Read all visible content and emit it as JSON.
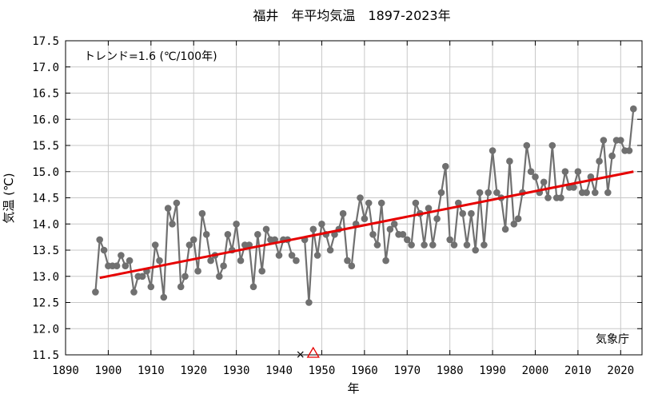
{
  "chart_data": {
    "type": "line",
    "title": "福井　年平均気温　1897-2023年",
    "xlabel": "年",
    "ylabel": "気温 (℃)",
    "xlim": [
      1890,
      2025
    ],
    "ylim": [
      11.5,
      17.5
    ],
    "x_ticks": [
      1890,
      1900,
      1910,
      1920,
      1930,
      1940,
      1950,
      1960,
      1970,
      1980,
      1990,
      2000,
      2010,
      2020
    ],
    "y_ticks": [
      11.5,
      12.0,
      12.5,
      13.0,
      13.5,
      14.0,
      14.5,
      15.0,
      15.5,
      16.0,
      16.5,
      17.0,
      17.5
    ],
    "y_tick_labels": [
      "11.5",
      "12.0",
      "12.5",
      "13.0",
      "13.5",
      "14.0",
      "14.5",
      "15.0",
      "15.5",
      "16.0",
      "16.5",
      "17.0",
      "17.5"
    ],
    "grid": true,
    "trend_label": "トレンド=1.6 (℃/100年)",
    "source_label": "気象庁",
    "series": [
      {
        "color": "#707070",
        "segments": [
          {
            "x": [
              1897,
              1898,
              1899,
              1900,
              1901,
              1902,
              1903,
              1904,
              1905,
              1906,
              1907,
              1908,
              1909,
              1910,
              1911,
              1912,
              1913,
              1914,
              1915,
              1916,
              1917,
              1918,
              1919,
              1920,
              1921,
              1922,
              1923,
              1924,
              1925,
              1926,
              1927,
              1928,
              1929,
              1930,
              1931,
              1932,
              1933,
              1934,
              1935,
              1936,
              1937,
              1938,
              1939,
              1940,
              1941,
              1942,
              1943,
              1944
            ],
            "y": [
              12.7,
              13.7,
              13.5,
              13.2,
              13.2,
              13.2,
              13.4,
              13.2,
              13.3,
              12.7,
              13.0,
              13.0,
              13.1,
              12.8,
              13.6,
              13.3,
              12.6,
              14.3,
              14.0,
              14.4,
              12.8,
              13.0,
              13.6,
              13.7,
              13.1,
              14.2,
              13.8,
              13.3,
              13.4,
              13.0,
              13.2,
              13.8,
              13.5,
              14.0,
              13.3,
              13.6,
              13.6,
              12.8,
              13.8,
              13.1,
              13.9,
              13.7,
              13.7,
              13.4,
              13.7,
              13.7,
              13.4,
              13.3
            ]
          },
          {
            "x": [
              1946,
              1947,
              1948,
              1949,
              1950,
              1951,
              1952,
              1953,
              1954,
              1955,
              1956,
              1957,
              1958,
              1959,
              1960,
              1961,
              1962,
              1963,
              1964,
              1965,
              1966,
              1967,
              1968,
              1969,
              1970,
              1971,
              1972,
              1973,
              1974,
              1975,
              1976,
              1977,
              1978,
              1979,
              1980,
              1981,
              1982,
              1983,
              1984,
              1985,
              1986,
              1987,
              1988,
              1989,
              1990,
              1991,
              1992,
              1993,
              1994,
              1995,
              1996,
              1997,
              1998,
              1999,
              2000,
              2001,
              2002,
              2003,
              2004,
              2005,
              2006,
              2007,
              2008,
              2009,
              2010,
              2011,
              2012,
              2013,
              2014,
              2015,
              2016,
              2017,
              2018,
              2019,
              2020,
              2021,
              2022,
              2023
            ],
            "y": [
              13.7,
              12.5,
              13.9,
              13.4,
              14.0,
              13.8,
              13.5,
              13.8,
              13.9,
              14.2,
              13.3,
              13.2,
              14.0,
              14.5,
              14.1,
              14.4,
              13.8,
              13.6,
              14.4,
              13.3,
              13.9,
              14.0,
              13.8,
              13.8,
              13.7,
              13.6,
              14.4,
              14.2,
              13.6,
              14.3,
              13.6,
              14.1,
              14.6,
              15.1,
              13.7,
              13.6,
              14.4,
              14.2,
              13.6,
              14.2,
              13.5,
              14.6,
              13.6,
              14.6,
              15.4,
              14.6,
              14.5,
              13.9,
              15.2,
              14.0,
              14.1,
              14.6,
              15.5,
              15.0,
              14.9,
              14.6,
              14.8,
              14.5,
              15.5,
              14.5,
              14.5,
              15.0,
              14.7,
              14.7,
              15.0,
              14.6,
              14.6,
              14.9,
              14.6,
              15.2,
              15.6,
              14.6,
              15.3,
              15.6,
              15.6,
              15.4,
              15.4,
              16.2
            ]
          }
        ]
      }
    ],
    "trend": {
      "color": "#e60000",
      "x": [
        1898,
        2023
      ],
      "y": [
        12.97,
        15.0
      ]
    },
    "markers": [
      {
        "symbol": "×",
        "x": 1945,
        "y": 11.5,
        "color": "#000000"
      },
      {
        "symbol": "triangle",
        "x": 1948,
        "y": 11.5,
        "color": "#e60000"
      }
    ]
  }
}
